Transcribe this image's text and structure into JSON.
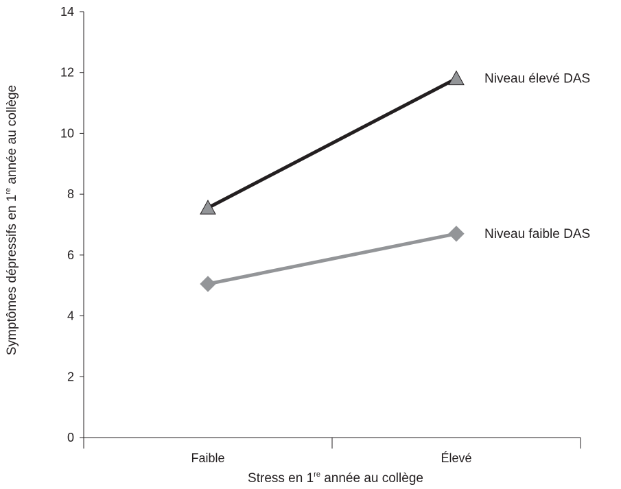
{
  "chart_data": {
    "type": "line",
    "categories": [
      "Faible",
      "Élevé"
    ],
    "series": [
      {
        "name": "Niveau élevé DAS",
        "values": [
          7.55,
          11.8
        ],
        "color": "#231f20",
        "marker": "triangle",
        "marker_color": "#939598"
      },
      {
        "name": "Niveau faible DAS",
        "values": [
          5.05,
          6.7
        ],
        "color": "#939598",
        "marker": "diamond",
        "marker_color": "#939598"
      }
    ],
    "xlabel": {
      "before": "Stress en 1",
      "sup": "re",
      "after": " année au collège"
    },
    "ylabel": {
      "before": "Symptômes dépressifs en 1",
      "sup": "re",
      "after": " année au collège"
    },
    "ylim": [
      0,
      14
    ],
    "yticks": [
      0,
      2,
      4,
      6,
      8,
      10,
      12,
      14
    ],
    "grid": false,
    "legend": "inline-right"
  }
}
